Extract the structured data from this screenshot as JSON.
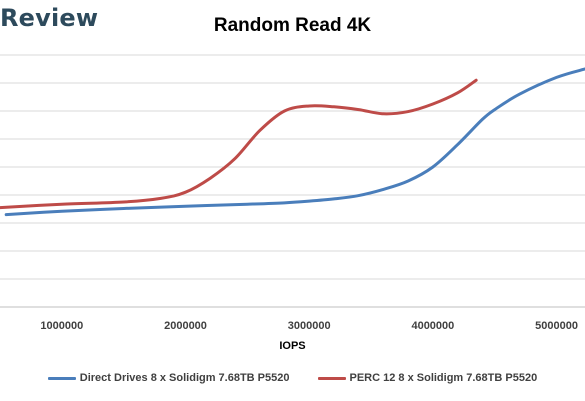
{
  "brand": "Review",
  "chart_data": {
    "type": "line",
    "title": "Random Read 4K",
    "xlabel": "IOPS",
    "ylabel": "",
    "xlim": [
      500000,
      5230000
    ],
    "ylim": [
      0,
      9
    ],
    "x_ticks": [
      {
        "value": 1000000,
        "label": "1000000"
      },
      {
        "value": 2000000,
        "label": "2000000"
      },
      {
        "value": 3000000,
        "label": "3000000"
      },
      {
        "value": 4000000,
        "label": "4000000"
      },
      {
        "value": 5000000,
        "label": "5000000"
      }
    ],
    "y_gridlines": [
      1,
      2,
      3,
      4,
      5,
      6,
      7,
      8,
      9
    ],
    "grid": true,
    "legend_position": "bottom",
    "series": [
      {
        "name": "Direct Drives 8 x Solidigm 7.68TB P5520",
        "color": "#4a7ebb",
        "points": [
          [
            550000,
            3.3
          ],
          [
            1000000,
            3.42
          ],
          [
            1500000,
            3.52
          ],
          [
            2000000,
            3.6
          ],
          [
            2500000,
            3.67
          ],
          [
            2800000,
            3.72
          ],
          [
            3000000,
            3.78
          ],
          [
            3200000,
            3.86
          ],
          [
            3400000,
            3.98
          ],
          [
            3600000,
            4.2
          ],
          [
            3800000,
            4.5
          ],
          [
            4000000,
            5.0
          ],
          [
            4200000,
            5.8
          ],
          [
            4400000,
            6.7
          ],
          [
            4500000,
            7.05
          ],
          [
            4700000,
            7.6
          ],
          [
            5000000,
            8.2
          ],
          [
            5230000,
            8.5
          ]
        ]
      },
      {
        "name": "PERC 12 8 x Solidigm 7.68TB P5520",
        "color": "#be4b48",
        "points": [
          [
            500000,
            3.55
          ],
          [
            1000000,
            3.67
          ],
          [
            1500000,
            3.75
          ],
          [
            1800000,
            3.88
          ],
          [
            2000000,
            4.1
          ],
          [
            2200000,
            4.6
          ],
          [
            2400000,
            5.3
          ],
          [
            2600000,
            6.3
          ],
          [
            2800000,
            7.0
          ],
          [
            3000000,
            7.18
          ],
          [
            3200000,
            7.15
          ],
          [
            3400000,
            7.05
          ],
          [
            3600000,
            6.9
          ],
          [
            3800000,
            6.98
          ],
          [
            4000000,
            7.25
          ],
          [
            4200000,
            7.65
          ],
          [
            4350000,
            8.1
          ]
        ]
      }
    ]
  }
}
